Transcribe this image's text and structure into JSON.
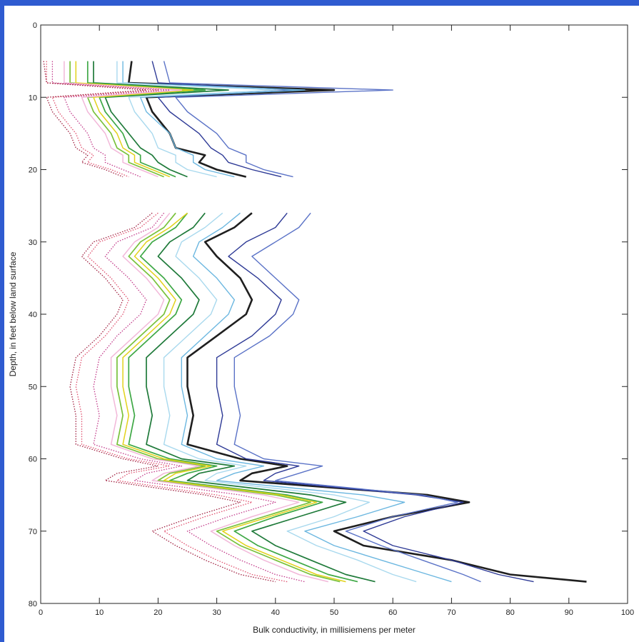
{
  "chart_data": {
    "type": "line",
    "title": "",
    "xlabel": "Bulk conductivity, in millisiemens per meter",
    "ylabel": "Depth, in feet below land surface",
    "xlim": [
      0,
      100
    ],
    "ylim": [
      80,
      0
    ],
    "xticks": [
      0,
      10,
      20,
      30,
      40,
      50,
      60,
      70,
      80,
      90,
      100
    ],
    "yticks": [
      0,
      10,
      20,
      30,
      40,
      50,
      60,
      70,
      80
    ],
    "grid": false,
    "legend": "none",
    "depth": [
      5,
      8,
      9,
      10,
      12,
      15,
      17,
      18,
      19,
      20,
      21,
      24.5,
      26,
      28,
      30,
      32,
      35,
      38,
      40,
      43,
      46,
      50,
      54,
      58,
      60,
      61,
      62,
      63,
      65,
      66,
      68,
      70,
      72,
      74,
      76,
      77
    ],
    "series": [
      {
        "color": "#1f1f1f",
        "dashed": false,
        "width": 2.6,
        "values": [
          15.5,
          15,
          50,
          18,
          19,
          22,
          23,
          28,
          27,
          30,
          35,
          null,
          36,
          33,
          28,
          30,
          34,
          36,
          35,
          30,
          25,
          25,
          26,
          25,
          34,
          42,
          36,
          34,
          66,
          73,
          60,
          50,
          55,
          70,
          80,
          93
        ]
      },
      {
        "color": "#2e3a96",
        "dashed": false,
        "width": 1.4,
        "values": [
          19,
          20,
          43,
          20,
          22,
          27,
          29,
          31,
          32,
          36,
          41,
          null,
          42,
          40,
          35,
          32,
          37,
          41,
          40,
          36,
          30,
          30,
          31,
          30,
          35,
          44,
          40,
          38,
          64,
          72,
          62,
          55,
          60,
          70,
          78,
          84
        ]
      },
      {
        "color": "#5b73c7",
        "dashed": false,
        "width": 1.4,
        "values": [
          21,
          22,
          60,
          23,
          25,
          30,
          32,
          35,
          35,
          38,
          43,
          null,
          46,
          44,
          40,
          36,
          40,
          44,
          43,
          39,
          33,
          33,
          34,
          33,
          38,
          48,
          44,
          40,
          65,
          71,
          60,
          52,
          58,
          65,
          72,
          75
        ]
      },
      {
        "color": "#6cb7e0",
        "dashed": false,
        "width": 1.4,
        "values": [
          14,
          14,
          45,
          17,
          18,
          22,
          23,
          26,
          26,
          28,
          33,
          null,
          34,
          31,
          27,
          26,
          30,
          33,
          32,
          28,
          24,
          24,
          25,
          24,
          30,
          38,
          33,
          30,
          55,
          62,
          54,
          45,
          50,
          58,
          66,
          70
        ]
      },
      {
        "color": "#a9d9ee",
        "dashed": false,
        "width": 1.4,
        "values": [
          13,
          13,
          40,
          15,
          16,
          19,
          20,
          23,
          23,
          25,
          30,
          null,
          31,
          28,
          24,
          23,
          27,
          30,
          29,
          25,
          21,
          21,
          22,
          21,
          27,
          35,
          30,
          28,
          50,
          56,
          50,
          42,
          47,
          54,
          60,
          64
        ]
      },
      {
        "color": "#1f7a3a",
        "dashed": false,
        "width": 1.7,
        "values": [
          9,
          9,
          32,
          11,
          12,
          15,
          17,
          19,
          20,
          22,
          25,
          null,
          28,
          26,
          22,
          20,
          24,
          27,
          26,
          22,
          18,
          18,
          19,
          18,
          24,
          33,
          27,
          25,
          46,
          52,
          44,
          36,
          40,
          46,
          52,
          57
        ]
      },
      {
        "color": "#3ea845",
        "dashed": false,
        "width": 1.7,
        "values": [
          8,
          8,
          28,
          10,
          11,
          14,
          15,
          17,
          17,
          20,
          23,
          null,
          25,
          23,
          19,
          17,
          21,
          24,
          23,
          19,
          15,
          15,
          16,
          15,
          22,
          30,
          25,
          22,
          42,
          48,
          40,
          33,
          37,
          43,
          49,
          54
        ]
      },
      {
        "color": "#79c13b",
        "dashed": false,
        "width": 1.7,
        "values": [
          5,
          5,
          25,
          8,
          9,
          12,
          13,
          15,
          15,
          18,
          21,
          null,
          23,
          21,
          17,
          15,
          19,
          22,
          21,
          17,
          13,
          13,
          14,
          13,
          20,
          28,
          22,
          20,
          40,
          46,
          38,
          30,
          34,
          40,
          46,
          51
        ]
      },
      {
        "color": "#e2d21c",
        "dashed": false,
        "width": 1.5,
        "values": [
          6,
          6,
          26,
          9,
          10,
          13,
          14,
          16,
          16,
          19,
          22,
          null,
          25,
          22,
          18,
          16,
          20,
          23,
          22,
          18,
          14,
          14,
          15,
          14,
          21,
          29,
          23,
          21,
          41,
          47,
          39,
          31,
          35,
          41,
          47,
          52
        ]
      },
      {
        "color": "#f2b8d9",
        "dashed": false,
        "width": 1.5,
        "values": [
          4,
          4,
          24,
          7,
          8,
          11,
          12,
          14,
          14,
          17,
          20,
          null,
          22,
          20,
          16,
          14,
          18,
          21,
          20,
          16,
          12,
          12,
          13,
          12,
          19,
          27,
          21,
          19,
          38,
          44,
          36,
          29,
          33,
          38,
          44,
          49
        ]
      },
      {
        "color": "#c23a8a",
        "dashed": true,
        "width": 1.3,
        "values": [
          2,
          2,
          22,
          4,
          5,
          8,
          9,
          11,
          11,
          14,
          17,
          null,
          21,
          19,
          13,
          11,
          15,
          18,
          17,
          13,
          10,
          9,
          10,
          9,
          17,
          24,
          18,
          16,
          34,
          40,
          32,
          25,
          29,
          34,
          40,
          45
        ]
      },
      {
        "color": "#e0506e",
        "dashed": true,
        "width": 1.3,
        "values": [
          1,
          1,
          20,
          2,
          3,
          6,
          7,
          9,
          8,
          12,
          15,
          null,
          20,
          17,
          10,
          8,
          12,
          15,
          14,
          11,
          7,
          6,
          7,
          7,
          15,
          22,
          15,
          13,
          30,
          36,
          28,
          21,
          25,
          30,
          36,
          42
        ]
      },
      {
        "color": "#a02040",
        "dashed": true,
        "width": 1.3,
        "values": [
          0.5,
          1,
          18,
          1,
          2,
          5,
          6,
          8,
          7,
          11,
          14,
          null,
          19,
          16,
          9,
          7,
          11,
          14,
          13,
          10,
          6,
          5,
          6,
          6,
          14,
          20,
          13,
          11,
          28,
          34,
          26,
          19,
          23,
          28,
          34,
          40
        ]
      }
    ]
  }
}
